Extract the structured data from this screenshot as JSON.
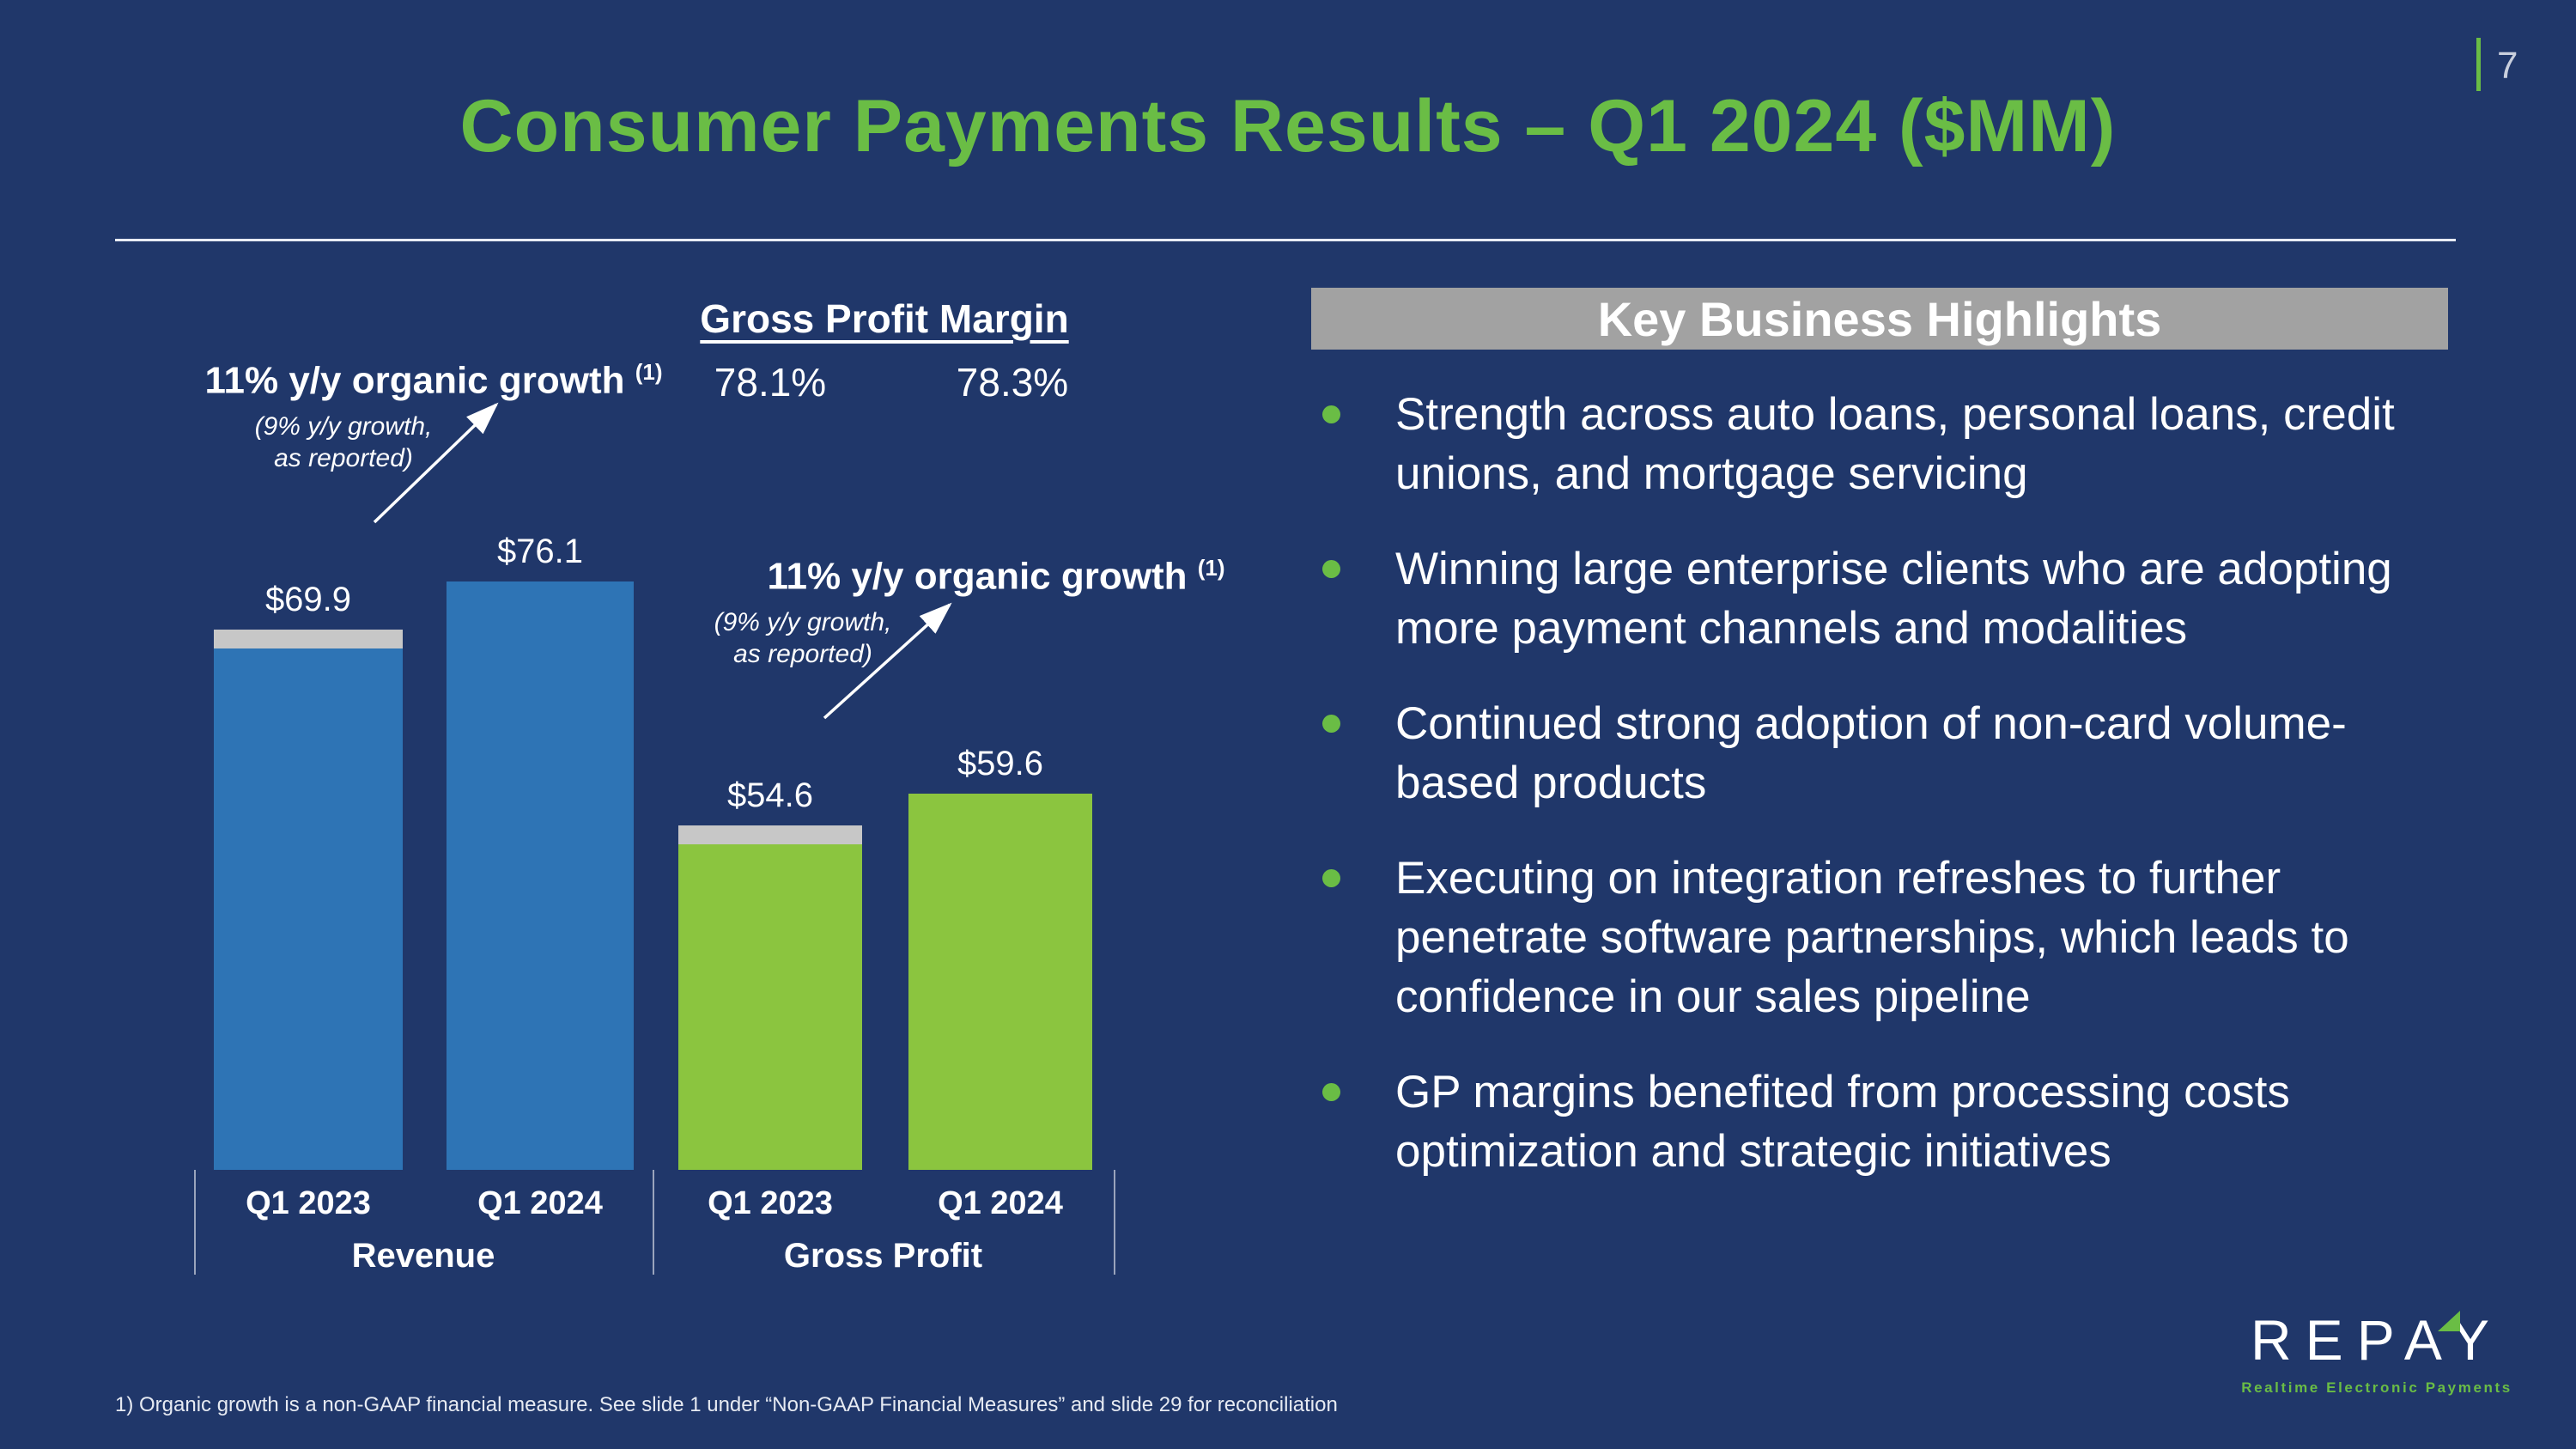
{
  "slide": {
    "page_number": "7",
    "title": "Consumer Payments Results – Q1 2024 ($MM)"
  },
  "chart_data": {
    "type": "bar",
    "title": "Consumer Payments Results – Q1 2024 ($MM)",
    "units": "$MM",
    "categories": [
      "Q1 2023",
      "Q1 2024"
    ],
    "series": [
      {
        "name": "Revenue",
        "values": [
          69.9,
          76.1
        ],
        "labels": [
          "$69.9",
          "$76.1"
        ],
        "color": "#2e74b5",
        "gray_cap": [
          true,
          false
        ]
      },
      {
        "name": "Gross Profit",
        "values": [
          54.6,
          59.6
        ],
        "labels": [
          "$54.6",
          "$59.6"
        ],
        "color": "#8bc53f",
        "gray_cap": [
          true,
          false
        ]
      }
    ],
    "gross_profit_margin": {
      "label": "Gross Profit Margin",
      "values": [
        "78.1%",
        "78.3%"
      ]
    },
    "annotations": [
      {
        "applies_to": "Revenue",
        "text": "11% y/y organic growth",
        "superscript": "(1)",
        "subtext_line1": "(9% y/y growth,",
        "subtext_line2": "as reported)"
      },
      {
        "applies_to": "Gross Profit",
        "text": "11% y/y organic growth",
        "superscript": "(1)",
        "subtext_line1": "(9% y/y growth,",
        "subtext_line2": "as reported)"
      }
    ],
    "ylim": [
      0,
      80
    ],
    "gridlines": false,
    "legend": "none"
  },
  "highlights": {
    "header": "Key Business Highlights",
    "items": [
      "Strength across auto loans, personal loans, credit unions, and mortgage servicing",
      "Winning large enterprise clients who are adopting more payment channels and modalities",
      "Continued strong adoption of non-card volume-based products",
      "Executing on integration refreshes to further penetrate software partnerships, which leads to confidence in our sales pipeline",
      "GP margins benefited from processing costs optimization and strategic initiatives"
    ]
  },
  "footnote": "1)    Organic growth is a non-GAAP financial measure. See slide 1 under “Non-GAAP Financial Measures” and slide 29 for reconciliation",
  "logo": {
    "text": "REPAY",
    "tagline": "Realtime Electronic Payments"
  },
  "colors": {
    "background": "#20376a",
    "accent_green": "#6abd45",
    "bar_blue": "#2e74b5",
    "bar_green": "#8bc53f",
    "gray_cap": "#c7c7c7",
    "header_gray": "#a2a2a2"
  }
}
